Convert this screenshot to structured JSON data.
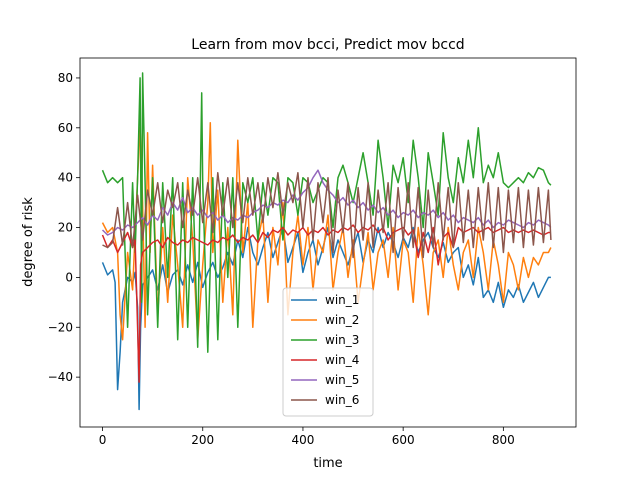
{
  "chart_data": {
    "type": "line",
    "title": "Learn from mov bcci, Predict mov bccd",
    "xlabel": "time",
    "ylabel": "degree of risk",
    "xlim": [
      -45,
      945
    ],
    "ylim": [
      -60,
      88
    ],
    "xticks": [
      0,
      200,
      400,
      600,
      800
    ],
    "yticks": [
      -40,
      -20,
      0,
      20,
      40,
      60,
      80
    ],
    "legend_position": "lower-center",
    "grid": false,
    "series": [
      {
        "name": "win_1",
        "color": "#1f77b4",
        "x": [
          0,
          10,
          20,
          25,
          30,
          35,
          40,
          50,
          60,
          65,
          70,
          73,
          76,
          80,
          90,
          100,
          110,
          120,
          130,
          140,
          150,
          160,
          170,
          180,
          190,
          200,
          210,
          220,
          230,
          240,
          250,
          260,
          270,
          280,
          290,
          300,
          310,
          320,
          330,
          340,
          350,
          360,
          370,
          380,
          390,
          400,
          410,
          420,
          430,
          440,
          450,
          460,
          470,
          480,
          490,
          500,
          510,
          520,
          530,
          540,
          550,
          560,
          570,
          580,
          590,
          600,
          610,
          620,
          630,
          640,
          650,
          660,
          670,
          680,
          690,
          700,
          710,
          720,
          730,
          740,
          750,
          760,
          770,
          780,
          790,
          800,
          810,
          820,
          830,
          840,
          850,
          860,
          870,
          880,
          890,
          895
        ],
        "y": [
          6,
          1,
          3,
          -2,
          -45,
          -30,
          -10,
          0,
          -2,
          2,
          -12,
          -53,
          -20,
          -3,
          0,
          3,
          -5,
          5,
          -6,
          1,
          3,
          -3,
          5,
          -2,
          6,
          -4,
          2,
          6,
          0,
          4,
          10,
          5,
          15,
          8,
          20,
          10,
          5,
          12,
          18,
          8,
          14,
          20,
          6,
          12,
          18,
          2,
          10,
          15,
          5,
          12,
          20,
          8,
          15,
          10,
          5,
          12,
          18,
          6,
          15,
          10,
          20,
          12,
          18,
          14,
          8,
          16,
          12,
          20,
          10,
          15,
          18,
          12,
          8,
          14,
          6,
          10,
          12,
          0,
          5,
          -3,
          8,
          -8,
          -5,
          -10,
          -2,
          -12,
          -5,
          -8,
          -3,
          -10,
          -6,
          -2,
          -8,
          -4,
          0,
          0
        ]
      },
      {
        "name": "win_2",
        "color": "#ff7f0e",
        "x": [
          0,
          10,
          20,
          30,
          35,
          40,
          50,
          60,
          70,
          75,
          80,
          85,
          90,
          95,
          100,
          110,
          120,
          130,
          140,
          150,
          160,
          170,
          180,
          190,
          200,
          210,
          215,
          220,
          230,
          240,
          250,
          260,
          270,
          280,
          290,
          300,
          310,
          320,
          330,
          340,
          350,
          360,
          370,
          380,
          390,
          400,
          410,
          420,
          430,
          440,
          450,
          460,
          470,
          480,
          490,
          500,
          510,
          520,
          530,
          540,
          550,
          560,
          570,
          580,
          590,
          600,
          610,
          620,
          630,
          640,
          650,
          660,
          670,
          680,
          690,
          700,
          710,
          720,
          730,
          740,
          750,
          760,
          770,
          780,
          790,
          800,
          810,
          820,
          830,
          840,
          850,
          860,
          870,
          880,
          890,
          895
        ],
        "y": [
          22,
          18,
          20,
          10,
          -15,
          -25,
          10,
          -5,
          40,
          60,
          30,
          -20,
          58,
          10,
          45,
          -15,
          20,
          -10,
          25,
          5,
          -20,
          40,
          15,
          -25,
          5,
          30,
          62,
          10,
          35,
          -10,
          20,
          -15,
          55,
          10,
          30,
          -20,
          15,
          25,
          -10,
          20,
          5,
          30,
          -15,
          10,
          25,
          5,
          20,
          -5,
          15,
          10,
          25,
          -5,
          10,
          20,
          0,
          15,
          -10,
          5,
          18,
          -5,
          10,
          15,
          0,
          20,
          -5,
          15,
          10,
          -10,
          20,
          5,
          -15,
          10,
          15,
          0,
          20,
          5,
          -5,
          10,
          15,
          0,
          20,
          10,
          -5,
          15,
          5,
          -10,
          10,
          5,
          -5,
          8,
          0,
          8,
          5,
          10,
          10,
          12
        ]
      },
      {
        "name": "win_3",
        "color": "#2ca02c",
        "x": [
          0,
          10,
          20,
          30,
          40,
          50,
          60,
          65,
          70,
          75,
          78,
          80,
          85,
          90,
          100,
          110,
          120,
          130,
          140,
          150,
          160,
          170,
          180,
          190,
          198,
          200,
          210,
          220,
          230,
          240,
          250,
          260,
          270,
          280,
          290,
          300,
          310,
          320,
          330,
          340,
          350,
          360,
          370,
          380,
          390,
          400,
          410,
          420,
          430,
          440,
          450,
          460,
          470,
          480,
          490,
          500,
          510,
          520,
          530,
          540,
          550,
          560,
          570,
          580,
          590,
          600,
          610,
          620,
          630,
          640,
          650,
          660,
          670,
          680,
          690,
          700,
          710,
          720,
          730,
          740,
          750,
          760,
          770,
          780,
          790,
          800,
          810,
          820,
          830,
          840,
          850,
          860,
          870,
          880,
          890,
          895
        ],
        "y": [
          43,
          38,
          40,
          38,
          40,
          -20,
          38,
          10,
          40,
          80,
          -10,
          82,
          38,
          -15,
          40,
          -20,
          38,
          0,
          40,
          -25,
          38,
          -20,
          40,
          -28,
          74,
          38,
          -30,
          40,
          -25,
          38,
          0,
          40,
          -20,
          38,
          30,
          40,
          15,
          38,
          25,
          40,
          38,
          15,
          40,
          38,
          25,
          40,
          38,
          30,
          35,
          40,
          38,
          20,
          40,
          45,
          38,
          30,
          40,
          50,
          38,
          25,
          55,
          40,
          20,
          45,
          38,
          48,
          30,
          55,
          40,
          20,
          50,
          38,
          25,
          58,
          40,
          30,
          48,
          38,
          55,
          40,
          60,
          38,
          45,
          40,
          50,
          38,
          36,
          38,
          40,
          38,
          42,
          40,
          44,
          43,
          38,
          37
        ]
      },
      {
        "name": "win_4",
        "color": "#d62728",
        "x": [
          0,
          10,
          20,
          30,
          40,
          50,
          60,
          65,
          70,
          73,
          76,
          80,
          90,
          100,
          110,
          120,
          130,
          140,
          150,
          160,
          170,
          180,
          190,
          200,
          210,
          220,
          230,
          240,
          250,
          260,
          270,
          280,
          290,
          300,
          310,
          320,
          330,
          340,
          350,
          360,
          370,
          380,
          390,
          400,
          410,
          420,
          430,
          440,
          450,
          460,
          470,
          480,
          490,
          500,
          510,
          520,
          530,
          540,
          550,
          560,
          570,
          580,
          590,
          600,
          610,
          620,
          630,
          640,
          650,
          660,
          670,
          680,
          690,
          700,
          710,
          720,
          730,
          740,
          750,
          760,
          770,
          780,
          790,
          800,
          810,
          820,
          830,
          840,
          850,
          860,
          870,
          880,
          890,
          895
        ],
        "y": [
          17,
          12,
          15,
          10,
          14,
          18,
          12,
          15,
          -20,
          -42,
          5,
          10,
          12,
          14,
          15,
          12,
          16,
          14,
          13,
          15,
          14,
          16,
          15,
          14,
          13,
          15,
          14,
          16,
          15,
          17,
          14,
          16,
          15,
          17,
          14,
          18,
          16,
          19,
          18,
          20,
          17,
          19,
          18,
          20,
          17,
          19,
          18,
          20,
          17,
          19,
          18,
          20,
          19,
          21,
          18,
          20,
          19,
          21,
          18,
          20,
          15,
          18,
          19,
          20,
          17,
          19,
          8,
          18,
          10,
          20,
          5,
          16,
          18,
          12,
          20,
          18,
          19,
          20,
          18,
          19,
          20,
          18,
          19,
          20,
          18,
          19,
          18,
          19,
          18,
          19,
          18,
          17,
          18,
          18
        ]
      },
      {
        "name": "win_5",
        "color": "#9467bd",
        "x": [
          0,
          10,
          20,
          30,
          40,
          50,
          60,
          70,
          80,
          90,
          100,
          110,
          120,
          130,
          140,
          150,
          160,
          170,
          180,
          190,
          200,
          210,
          220,
          230,
          240,
          250,
          260,
          270,
          280,
          290,
          300,
          310,
          320,
          330,
          340,
          350,
          360,
          370,
          380,
          390,
          400,
          410,
          420,
          430,
          440,
          450,
          460,
          470,
          480,
          490,
          500,
          510,
          520,
          530,
          540,
          550,
          560,
          570,
          580,
          590,
          600,
          610,
          620,
          630,
          640,
          650,
          660,
          670,
          680,
          690,
          700,
          710,
          720,
          730,
          740,
          750,
          760,
          770,
          780,
          790,
          800,
          810,
          820,
          830,
          840,
          850,
          860,
          870,
          880,
          890,
          895
        ],
        "y": [
          19,
          17,
          18,
          20,
          19,
          21,
          20,
          22,
          24,
          21,
          25,
          23,
          28,
          25,
          30,
          27,
          32,
          26,
          28,
          25,
          27,
          24,
          26,
          23,
          25,
          22,
          24,
          23,
          25,
          24,
          26,
          27,
          29,
          28,
          30,
          29,
          31,
          30,
          33,
          31,
          34,
          36,
          40,
          43,
          38,
          35,
          33,
          30,
          32,
          29,
          31,
          28,
          30,
          27,
          29,
          26,
          28,
          25,
          27,
          24,
          26,
          25,
          27,
          24,
          26,
          25,
          27,
          24,
          26,
          23,
          25,
          22,
          24,
          23,
          22,
          24,
          21,
          23,
          20,
          22,
          21,
          23,
          22,
          21,
          20,
          22,
          21,
          23,
          22,
          21,
          20
        ]
      },
      {
        "name": "win_6",
        "color": "#8c564b",
        "x": [
          0,
          10,
          20,
          30,
          40,
          50,
          60,
          70,
          80,
          90,
          100,
          110,
          120,
          130,
          140,
          150,
          160,
          170,
          180,
          190,
          200,
          210,
          220,
          230,
          240,
          250,
          260,
          270,
          280,
          290,
          300,
          310,
          320,
          330,
          340,
          350,
          360,
          370,
          380,
          390,
          400,
          410,
          420,
          430,
          440,
          450,
          460,
          470,
          480,
          490,
          500,
          510,
          520,
          530,
          540,
          550,
          560,
          570,
          580,
          590,
          600,
          610,
          620,
          630,
          640,
          650,
          660,
          670,
          680,
          690,
          700,
          710,
          720,
          730,
          740,
          750,
          760,
          770,
          780,
          790,
          800,
          810,
          820,
          830,
          840,
          850,
          860,
          870,
          880,
          890,
          895
        ],
        "y": [
          13,
          12,
          14,
          28,
          13,
          30,
          12,
          33,
          15,
          35,
          25,
          38,
          22,
          35,
          28,
          38,
          20,
          35,
          25,
          40,
          22,
          38,
          18,
          42,
          25,
          40,
          20,
          38,
          22,
          40,
          25,
          38,
          22,
          40,
          28,
          42,
          25,
          38,
          30,
          42,
          20,
          40,
          15,
          38,
          22,
          40,
          10,
          35,
          18,
          38,
          8,
          36,
          15,
          38,
          12,
          35,
          18,
          38,
          10,
          36,
          15,
          38,
          12,
          36,
          8,
          35,
          12,
          38,
          15,
          36,
          12,
          38,
          14,
          35,
          12,
          36,
          15,
          38,
          12,
          36,
          10,
          35,
          14,
          36,
          12,
          35,
          13,
          36,
          14,
          35,
          15
        ]
      }
    ]
  }
}
